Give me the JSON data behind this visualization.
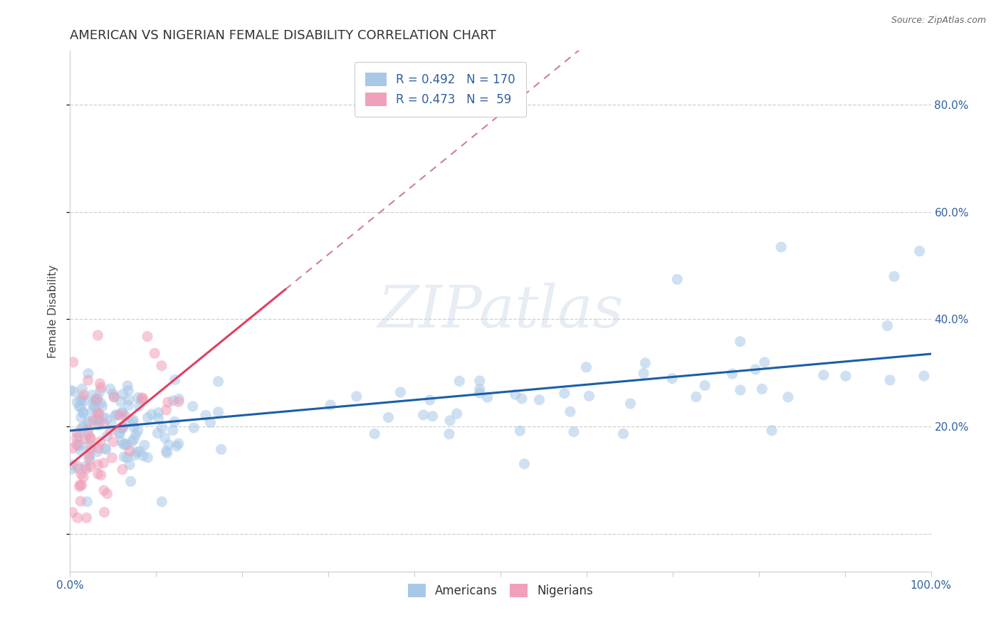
{
  "title": "AMERICAN VS NIGERIAN FEMALE DISABILITY CORRELATION CHART",
  "source": "Source: ZipAtlas.com",
  "ylabel": "Female Disability",
  "xlim": [
    0.0,
    1.0
  ],
  "ylim": [
    -0.07,
    0.9
  ],
  "x_tick_positions": [
    0.0,
    0.1,
    0.2,
    0.3,
    0.4,
    0.5,
    0.6,
    0.7,
    0.8,
    0.9,
    1.0
  ],
  "x_tick_labels": [
    "0.0%",
    "",
    "",
    "",
    "",
    "",
    "",
    "",
    "",
    "",
    "100.0%"
  ],
  "y_tick_positions": [
    0.0,
    0.2,
    0.4,
    0.6,
    0.8
  ],
  "y_tick_labels": [
    "",
    "20.0%",
    "40.0%",
    "60.0%",
    "80.0%"
  ],
  "american_color": "#a8c8e8",
  "nigerian_color": "#f0a0b8",
  "american_line_color": "#1a5fa8",
  "nigerian_line_color": "#e04060",
  "nigerian_dash_color": "#d08090",
  "R_american": 0.492,
  "N_american": 170,
  "R_nigerian": 0.473,
  "N_nigerian": 59,
  "title_fontsize": 13,
  "label_fontsize": 11,
  "tick_fontsize": 11,
  "legend_fontsize": 12,
  "marker_size": 120,
  "alpha": 0.55,
  "watermark": "ZIPatlas",
  "watermark_fontsize": 60
}
